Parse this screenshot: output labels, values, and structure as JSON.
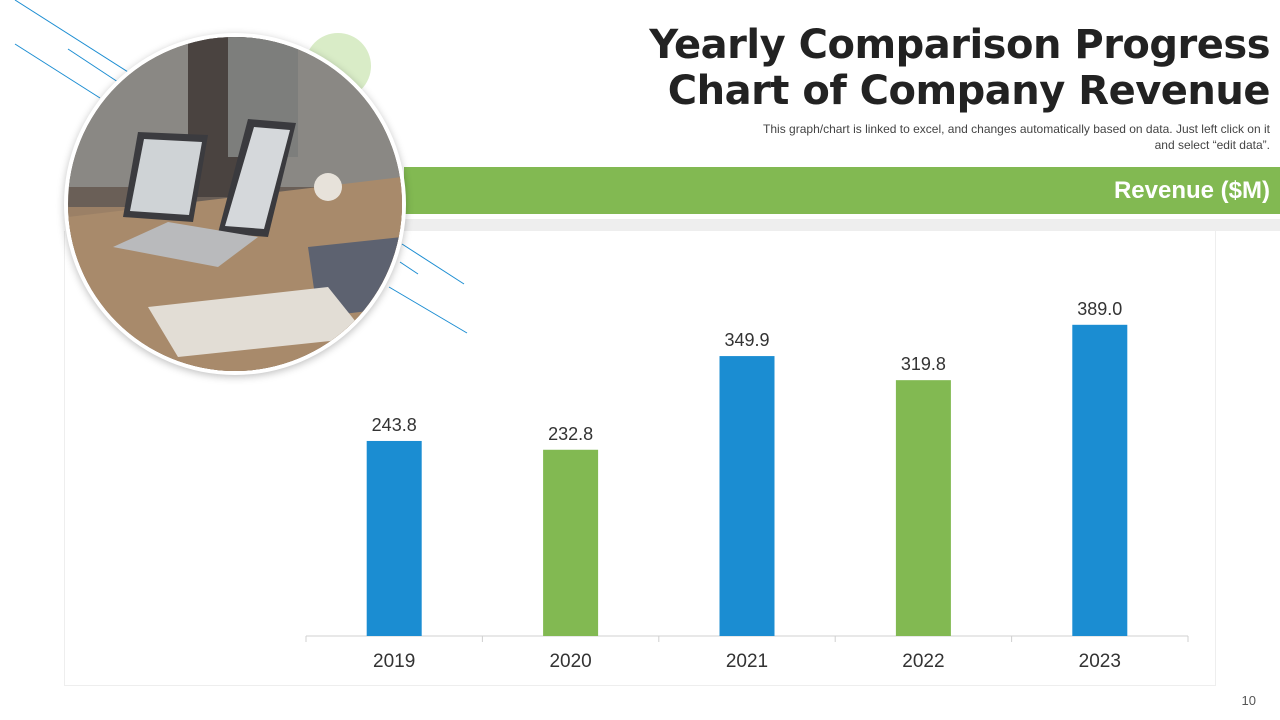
{
  "slide": {
    "title_line1": "Yearly Comparison Progress",
    "title_line2": "Chart of Company Revenue",
    "subtitle": "This graph/chart is linked to excel, and changes automatically based on data. Just left click on it and select “edit data”.",
    "page_number": "10"
  },
  "colors": {
    "blue": "#1b8dd2",
    "green": "#82b952",
    "band": "#82b952"
  },
  "chart_data": {
    "type": "bar",
    "title": "Revenue ($M)",
    "xlabel": "",
    "ylabel": "",
    "categories": [
      "2019",
      "2020",
      "2021",
      "2022",
      "2023"
    ],
    "values": [
      243.8,
      232.8,
      349.9,
      319.8,
      389.0
    ],
    "value_labels": [
      "243.8",
      "232.8",
      "349.9",
      "319.8",
      "389.0"
    ],
    "bar_colors": [
      "#1b8dd2",
      "#82b952",
      "#1b8dd2",
      "#82b952",
      "#1b8dd2"
    ],
    "ylim": [
      0,
      500
    ],
    "grid": false,
    "legend": "none"
  }
}
